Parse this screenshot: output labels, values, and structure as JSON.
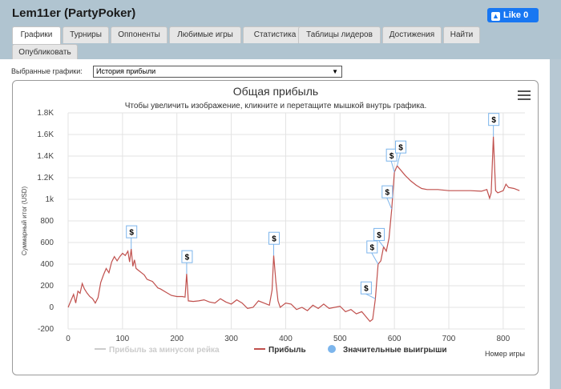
{
  "window": {
    "title": "Lem11er (PartyPoker)"
  },
  "facebook": {
    "label": "Like 0",
    "icon": "thumbs-up-icon"
  },
  "tabs": [
    {
      "label": "Графики",
      "active": true
    },
    {
      "label": "Турниры"
    },
    {
      "label": "Оппоненты"
    },
    {
      "label": "Любимые игры"
    },
    {
      "label": "Статистика"
    },
    {
      "label": "Таблицы лидеров"
    },
    {
      "label": "Достижения"
    },
    {
      "label": "Найти"
    },
    {
      "label": "Опубликовать"
    }
  ],
  "selector": {
    "label": "Выбранные графики:",
    "value": "История прибыли"
  },
  "chart_data": {
    "type": "line",
    "title": "Общая прибыль",
    "subtitle": "Чтобы увеличить изображение, кликните и перетащите мышкой внутрь графика.",
    "xlabel": "Номер игры",
    "ylabel": "Суммарный итог (USD)",
    "xlim": [
      0,
      840
    ],
    "ylim": [
      -200,
      1800
    ],
    "x_ticks": [
      0,
      100,
      200,
      300,
      400,
      500,
      600,
      700,
      800
    ],
    "y_ticks": [
      -200,
      0,
      200,
      400,
      600,
      800,
      1000,
      1200,
      1400,
      1600,
      1800
    ],
    "y_tick_labels": [
      "-200",
      "0",
      "200",
      "400",
      "600",
      "800",
      "1k",
      "1.2K",
      "1.4K",
      "1.6K",
      "1.8K"
    ],
    "grid": true,
    "legend_position": "bottom",
    "series": [
      {
        "name": "Прибыль",
        "color": "#c0504d",
        "points": [
          [
            0,
            0
          ],
          [
            5,
            60
          ],
          [
            10,
            120
          ],
          [
            14,
            40
          ],
          [
            18,
            150
          ],
          [
            22,
            130
          ],
          [
            26,
            220
          ],
          [
            30,
            170
          ],
          [
            35,
            130
          ],
          [
            40,
            100
          ],
          [
            45,
            80
          ],
          [
            50,
            40
          ],
          [
            55,
            90
          ],
          [
            60,
            230
          ],
          [
            65,
            300
          ],
          [
            70,
            360
          ],
          [
            75,
            320
          ],
          [
            80,
            420
          ],
          [
            85,
            470
          ],
          [
            90,
            430
          ],
          [
            95,
            470
          ],
          [
            100,
            500
          ],
          [
            105,
            480
          ],
          [
            110,
            520
          ],
          [
            113,
            420
          ],
          [
            116,
            540
          ],
          [
            119,
            380
          ],
          [
            122,
            440
          ],
          [
            125,
            360
          ],
          [
            130,
            340
          ],
          [
            135,
            320
          ],
          [
            140,
            300
          ],
          [
            145,
            260
          ],
          [
            150,
            250
          ],
          [
            155,
            240
          ],
          [
            160,
            210
          ],
          [
            165,
            180
          ],
          [
            170,
            170
          ],
          [
            180,
            140
          ],
          [
            190,
            110
          ],
          [
            200,
            100
          ],
          [
            210,
            100
          ],
          [
            215,
            95
          ],
          [
            218,
            310
          ],
          [
            221,
            60
          ],
          [
            230,
            55
          ],
          [
            240,
            60
          ],
          [
            250,
            70
          ],
          [
            260,
            50
          ],
          [
            270,
            40
          ],
          [
            280,
            80
          ],
          [
            290,
            50
          ],
          [
            300,
            30
          ],
          [
            310,
            70
          ],
          [
            320,
            40
          ],
          [
            330,
            -10
          ],
          [
            340,
            0
          ],
          [
            350,
            60
          ],
          [
            360,
            40
          ],
          [
            370,
            20
          ],
          [
            375,
            160
          ],
          [
            378,
            480
          ],
          [
            382,
            240
          ],
          [
            386,
            60
          ],
          [
            390,
            0
          ],
          [
            400,
            40
          ],
          [
            410,
            30
          ],
          [
            420,
            -20
          ],
          [
            430,
            0
          ],
          [
            440,
            -30
          ],
          [
            450,
            20
          ],
          [
            460,
            -10
          ],
          [
            470,
            30
          ],
          [
            480,
            -10
          ],
          [
            490,
            0
          ],
          [
            500,
            10
          ],
          [
            510,
            -40
          ],
          [
            520,
            -20
          ],
          [
            530,
            -60
          ],
          [
            540,
            -40
          ],
          [
            550,
            -100
          ],
          [
            555,
            -130
          ],
          [
            560,
            -110
          ],
          [
            565,
            80
          ],
          [
            570,
            400
          ],
          [
            575,
            430
          ],
          [
            580,
            560
          ],
          [
            585,
            520
          ],
          [
            590,
            640
          ],
          [
            595,
            910
          ],
          [
            600,
            1250
          ],
          [
            605,
            1310
          ],
          [
            610,
            1280
          ],
          [
            620,
            1220
          ],
          [
            630,
            1170
          ],
          [
            640,
            1130
          ],
          [
            650,
            1100
          ],
          [
            660,
            1090
          ],
          [
            680,
            1090
          ],
          [
            700,
            1080
          ],
          [
            720,
            1080
          ],
          [
            740,
            1080
          ],
          [
            760,
            1075
          ],
          [
            770,
            1090
          ],
          [
            775,
            1010
          ],
          [
            778,
            1060
          ],
          [
            782,
            1580
          ],
          [
            786,
            1080
          ],
          [
            790,
            1060
          ],
          [
            800,
            1080
          ],
          [
            805,
            1140
          ],
          [
            810,
            1110
          ],
          [
            820,
            1100
          ],
          [
            830,
            1080
          ]
        ]
      }
    ],
    "significant_wins": [
      {
        "x": 116,
        "y": 540
      },
      {
        "x": 218,
        "y": 310
      },
      {
        "x": 378,
        "y": 480
      },
      {
        "x": 565,
        "y": 80
      },
      {
        "x": 570,
        "y": 400
      },
      {
        "x": 580,
        "y": 560
      },
      {
        "x": 595,
        "y": 910
      },
      {
        "x": 600,
        "y": 1250
      },
      {
        "x": 605,
        "y": 1310
      },
      {
        "x": 782,
        "y": 1580
      }
    ],
    "legend": [
      {
        "label": "Прибыль за минусом рейка",
        "style": "line",
        "color": "#cccccc"
      },
      {
        "label": "Прибыль",
        "style": "line",
        "color": "#c0504d"
      },
      {
        "label": "Значительные выигрыши",
        "style": "dot",
        "color": "#7cb5ec"
      }
    ],
    "marker_label": "$"
  }
}
